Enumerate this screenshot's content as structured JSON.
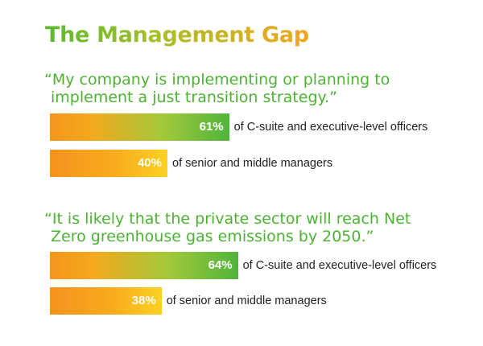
{
  "title": "The Management Gap",
  "chart_data": [
    {
      "type": "bar",
      "title": "“My company is implementing or planning to implement a just transition strategy.”",
      "title_lines": [
        "“My company is implementing or planning to",
        "implement a just transition strategy.”"
      ],
      "unit": "%",
      "series": [
        {
          "name": "of C-suite and executive-level officers",
          "value": 61,
          "label": "61%",
          "style": "exec"
        },
        {
          "name": "of senior and middle managers",
          "value": 40,
          "label": "40%",
          "style": "mgr"
        }
      ]
    },
    {
      "type": "bar",
      "title": "“It is likely that the private sector will reach Net Zero greenhouse gas emissions by 2050.”",
      "title_lines": [
        "“It is likely that the private sector will reach Net",
        "Zero greenhouse gas emissions by 2050.”"
      ],
      "unit": "%",
      "series": [
        {
          "name": "of C-suite and executive-level officers",
          "value": 64,
          "label": "64%",
          "style": "exec"
        },
        {
          "name": "of senior and middle managers",
          "value": 38,
          "label": "38%",
          "style": "mgr"
        }
      ]
    }
  ],
  "colors": {
    "title_green": "#5cb930",
    "title_orange": "#f5a51f",
    "quote_green": "#4db233",
    "exec_bar_start": "#f5951d",
    "exec_bar_end": "#4fb43b",
    "mgr_bar_start": "#f6921e",
    "mgr_bar_end": "#fbd122"
  }
}
